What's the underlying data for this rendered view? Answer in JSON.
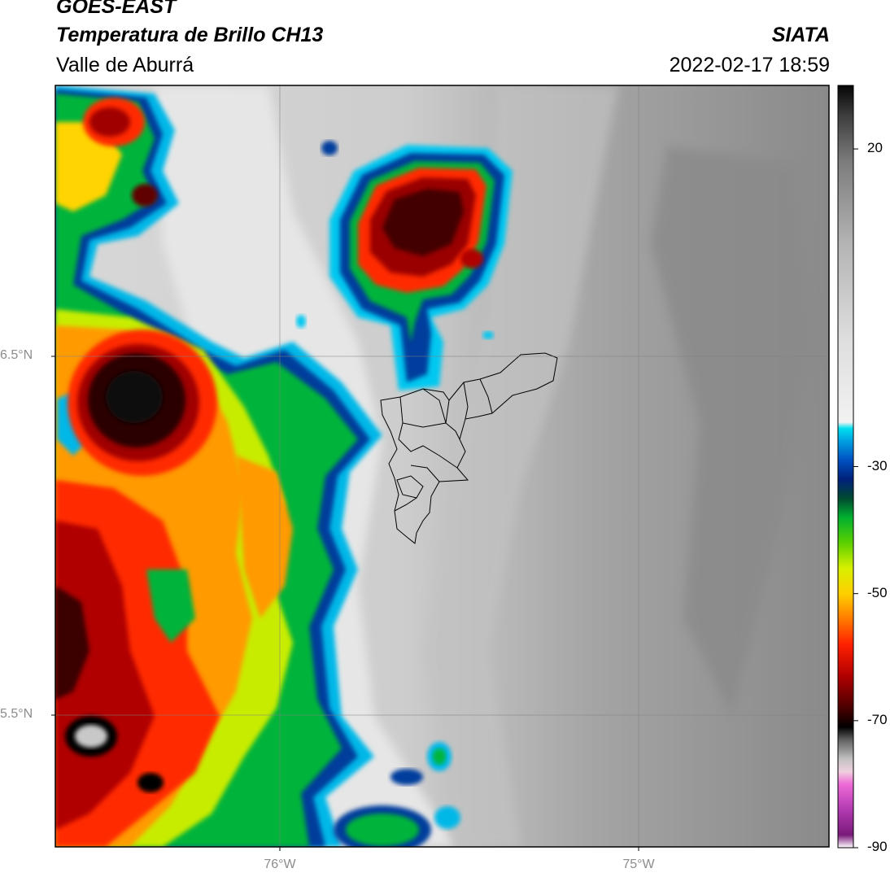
{
  "title": {
    "satellite": "GOES-EAST",
    "product": "Temperatura de Brillo CH13",
    "region": "Valle de Aburrá",
    "organization": "SIATA",
    "datetime": "2022-02-17 18:59"
  },
  "axes": {
    "lat_labels": [
      "6.5°N",
      "5.5°N"
    ],
    "lon_labels": [
      "76°W",
      "75°W"
    ]
  },
  "colorbar": {
    "tick_labels": [
      "20",
      "-30",
      "-50",
      "-70",
      "-90"
    ],
    "min": -90,
    "max": 30,
    "stops": [
      {
        "value": -90,
        "color": "#ffffff"
      },
      {
        "value": -88,
        "color": "#7a1a7a"
      },
      {
        "value": -84,
        "color": "#b23ab2"
      },
      {
        "value": -80,
        "color": "#ee6ad6"
      },
      {
        "value": -78,
        "color": "#f0d0e0"
      },
      {
        "value": -76,
        "color": "#c0c0c0"
      },
      {
        "value": -73,
        "color": "#606060"
      },
      {
        "value": -71,
        "color": "#000000"
      },
      {
        "value": -68,
        "color": "#4a0000"
      },
      {
        "value": -63,
        "color": "#b00000"
      },
      {
        "value": -58,
        "color": "#ff2000"
      },
      {
        "value": -54,
        "color": "#ff7a00"
      },
      {
        "value": -50,
        "color": "#ffd000"
      },
      {
        "value": -46,
        "color": "#d8f000"
      },
      {
        "value": -42,
        "color": "#5ad000"
      },
      {
        "value": -38,
        "color": "#00b030"
      },
      {
        "value": -35,
        "color": "#004a30"
      },
      {
        "value": -32,
        "color": "#00207a"
      },
      {
        "value": -29,
        "color": "#0050c0"
      },
      {
        "value": -26,
        "color": "#00a0e0"
      },
      {
        "value": -24,
        "color": "#00e0f0"
      },
      {
        "value": -23,
        "color": "#f2f2f2"
      },
      {
        "value": -10,
        "color": "#dedede"
      },
      {
        "value": 5,
        "color": "#b4b4b4"
      },
      {
        "value": 18,
        "color": "#7c7c7c"
      },
      {
        "value": 25,
        "color": "#404040"
      },
      {
        "value": 30,
        "color": "#050505"
      }
    ]
  }
}
